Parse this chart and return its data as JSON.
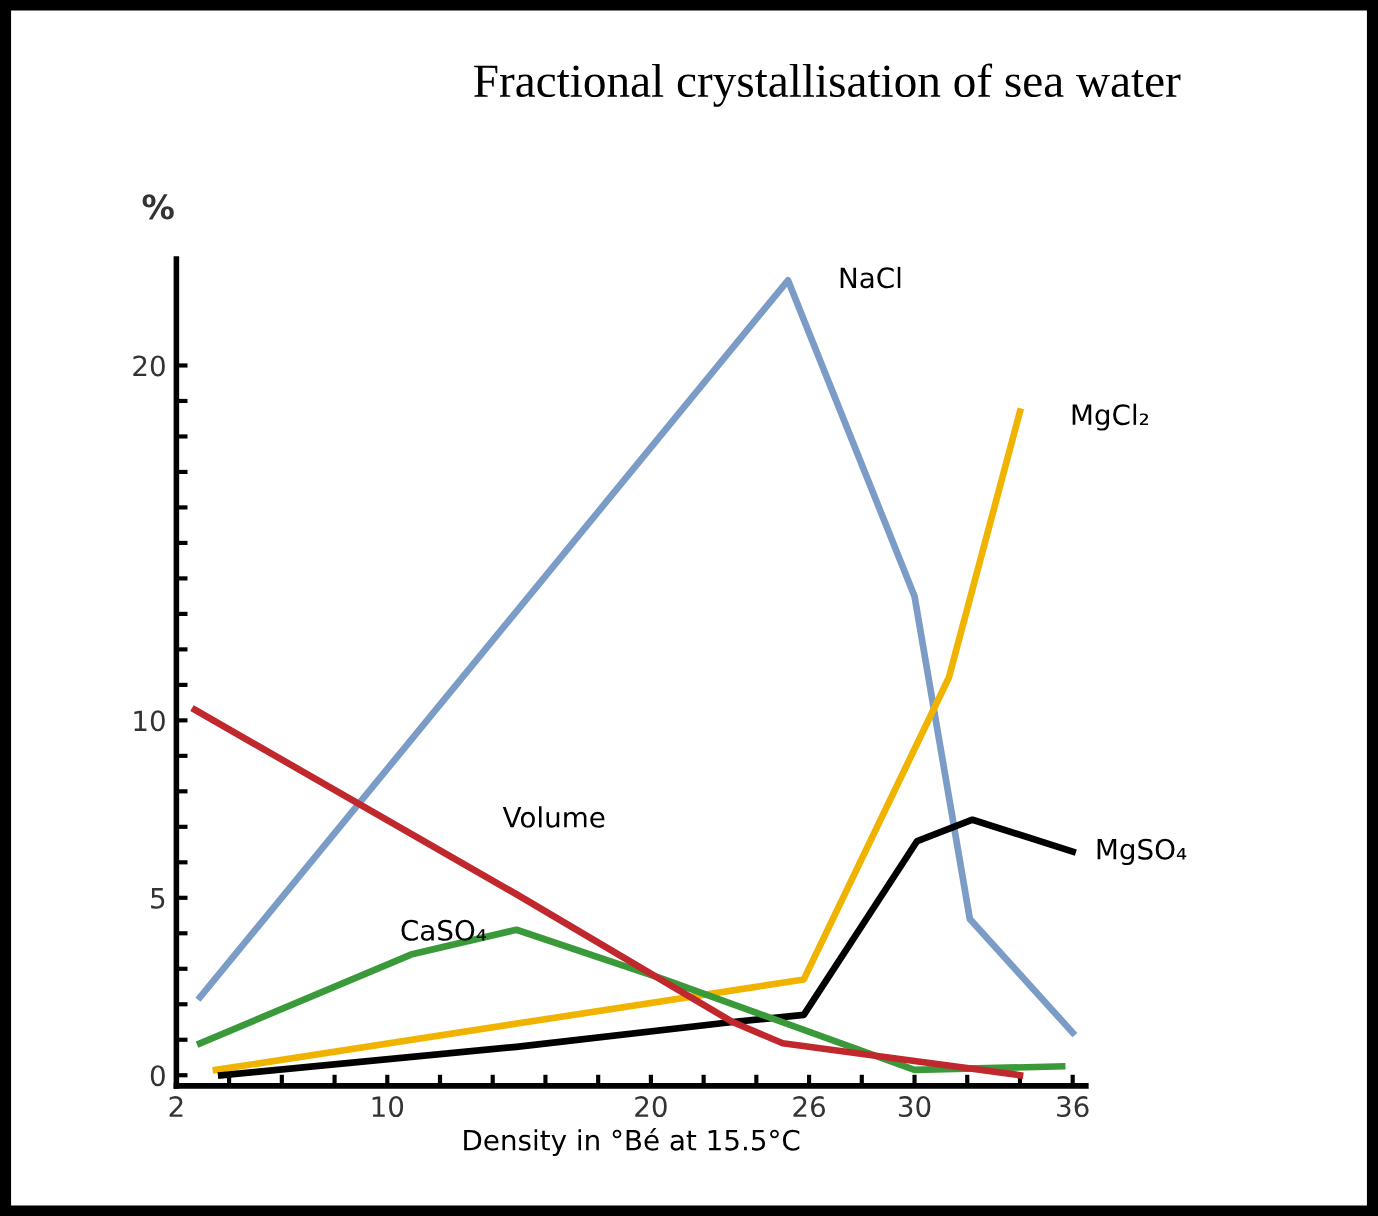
{
  "chart_data": {
    "type": "line",
    "title": "Fractional crystallisation of sea water",
    "xlabel": "Density in °Bé at 15.5°C",
    "ylabel": "%",
    "xlim": [
      2,
      36.5
    ],
    "ylim": [
      -0.3,
      23
    ],
    "xticks": [
      2,
      {
        "value": 4,
        "label": null
      },
      {
        "value": 6,
        "label": null
      },
      {
        "value": 8,
        "label": null
      },
      10,
      {
        "value": 12,
        "label": null
      },
      {
        "value": 14,
        "label": null
      },
      {
        "value": 16,
        "label": null
      },
      {
        "value": 18,
        "label": null
      },
      20,
      {
        "value": 22,
        "label": null
      },
      {
        "value": 24,
        "label": null
      },
      26,
      {
        "value": 28,
        "label": null
      },
      30,
      {
        "value": 32,
        "label": null
      },
      {
        "value": 34,
        "label": null
      },
      36
    ],
    "yticks": [
      0,
      {
        "value": 1,
        "label": null
      },
      {
        "value": 2,
        "label": null
      },
      {
        "value": 3,
        "label": null
      },
      {
        "value": 4,
        "label": null
      },
      5,
      {
        "value": 6,
        "label": null
      },
      {
        "value": 7,
        "label": null
      },
      {
        "value": 8,
        "label": null
      },
      {
        "value": 9,
        "label": null
      },
      10,
      {
        "value": 11,
        "label": null
      },
      {
        "value": 12,
        "label": null
      },
      {
        "value": 13,
        "label": null
      },
      {
        "value": 14,
        "label": null
      },
      {
        "value": 15,
        "label": null
      },
      {
        "value": 16,
        "label": null
      },
      {
        "value": 17,
        "label": null
      },
      {
        "value": 18,
        "label": null
      },
      {
        "value": 19,
        "label": null
      },
      20
    ],
    "grid": false,
    "legend": false,
    "marker": "none",
    "line_style": "solid",
    "series": [
      {
        "name": "NaCl",
        "color": "#7a9cc6",
        "x": [
          2.9,
          25.2,
          30.0,
          32.1,
          36.0
        ],
        "values": [
          2.2,
          22.4,
          13.5,
          4.4,
          1.2
        ]
      },
      {
        "name": "MgCl₂",
        "color": "#f0b400",
        "x": [
          3.5,
          25.8,
          31.3,
          34.0
        ],
        "values": [
          0.15,
          2.7,
          11.2,
          18.7
        ]
      },
      {
        "name": "MgSO₄",
        "color": "#000000",
        "x": [
          3.7,
          14.9,
          23.1,
          25.8,
          30.1,
          32.2,
          36.0
        ],
        "values": [
          0.0,
          0.8,
          1.5,
          1.7,
          6.6,
          7.2,
          6.3
        ]
      },
      {
        "name": "CaSO₄",
        "color": "#3a9a3a",
        "x": [
          2.9,
          10.9,
          14.9,
          20.5,
          30.0,
          35.6
        ],
        "values": [
          0.9,
          3.4,
          4.1,
          2.7,
          0.15,
          0.25
        ]
      },
      {
        "name": "Volume",
        "color": "#c0282d",
        "x": [
          2.7,
          14.9,
          23.1,
          25.0,
          30.0,
          34.0
        ],
        "values": [
          10.3,
          5.1,
          1.5,
          0.9,
          0.4,
          0.0
        ]
      }
    ]
  }
}
